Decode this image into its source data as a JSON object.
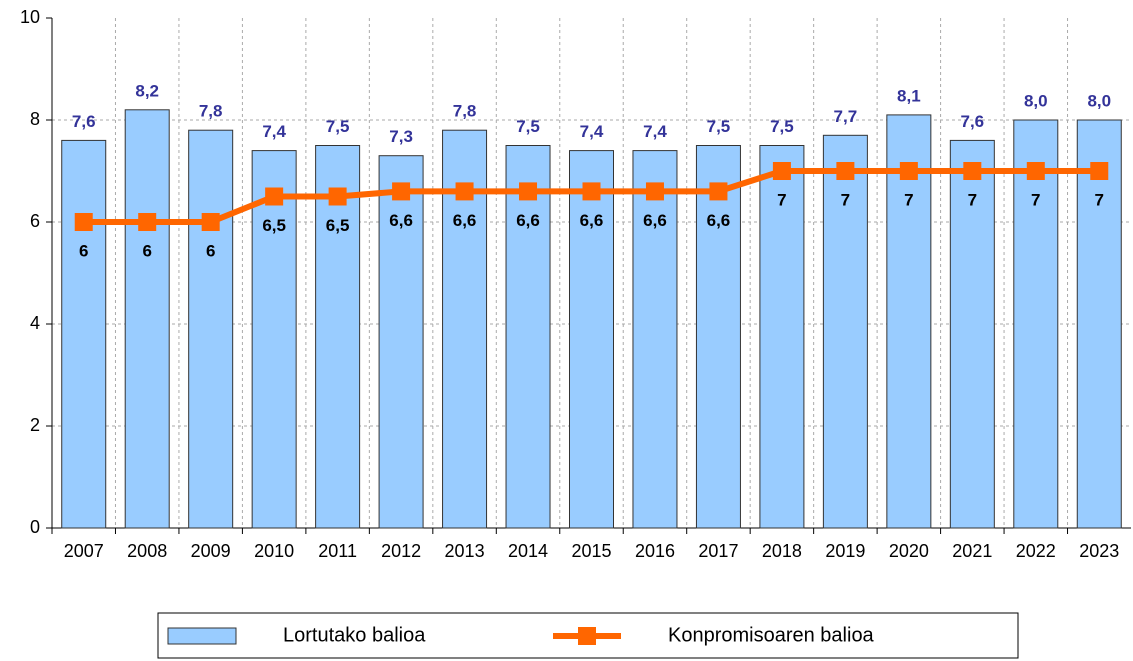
{
  "chart_data": {
    "type": "bar",
    "categories": [
      "2007",
      "2008",
      "2009",
      "2010",
      "2011",
      "2012",
      "2013",
      "2014",
      "2015",
      "2016",
      "2017",
      "2018",
      "2019",
      "2020",
      "2021",
      "2022",
      "2023"
    ],
    "series": [
      {
        "name": "Lortutako balioa",
        "type": "bar",
        "color": "#99ccff",
        "values": [
          7.6,
          8.2,
          7.8,
          7.4,
          7.5,
          7.3,
          7.8,
          7.5,
          7.4,
          7.4,
          7.5,
          7.5,
          7.7,
          8.1,
          7.6,
          8.0,
          8.0
        ],
        "value_labels": [
          "7,6",
          "8,2",
          "7,8",
          "7,4",
          "7,5",
          "7,3",
          "7,8",
          "7,5",
          "7,4",
          "7,4",
          "7,5",
          "7,5",
          "7,7",
          "8,1",
          "7,6",
          "8,0",
          "8,0"
        ]
      },
      {
        "name": "Konpromisoaren balioa",
        "type": "line",
        "color": "#ff6600",
        "values": [
          6,
          6,
          6,
          6.5,
          6.5,
          6.6,
          6.6,
          6.6,
          6.6,
          6.6,
          6.6,
          7,
          7,
          7,
          7,
          7,
          7
        ],
        "value_labels": [
          "6",
          "6",
          "6",
          "6,5",
          "6,5",
          "6,6",
          "6,6",
          "6,6",
          "6,6",
          "6,6",
          "6,6",
          "7",
          "7",
          "7",
          "7",
          "7",
          "7"
        ]
      }
    ],
    "ylim": [
      0,
      10
    ],
    "yticks": [
      0,
      2,
      4,
      6,
      8,
      10
    ],
    "grid": true,
    "legend": "bottom"
  }
}
